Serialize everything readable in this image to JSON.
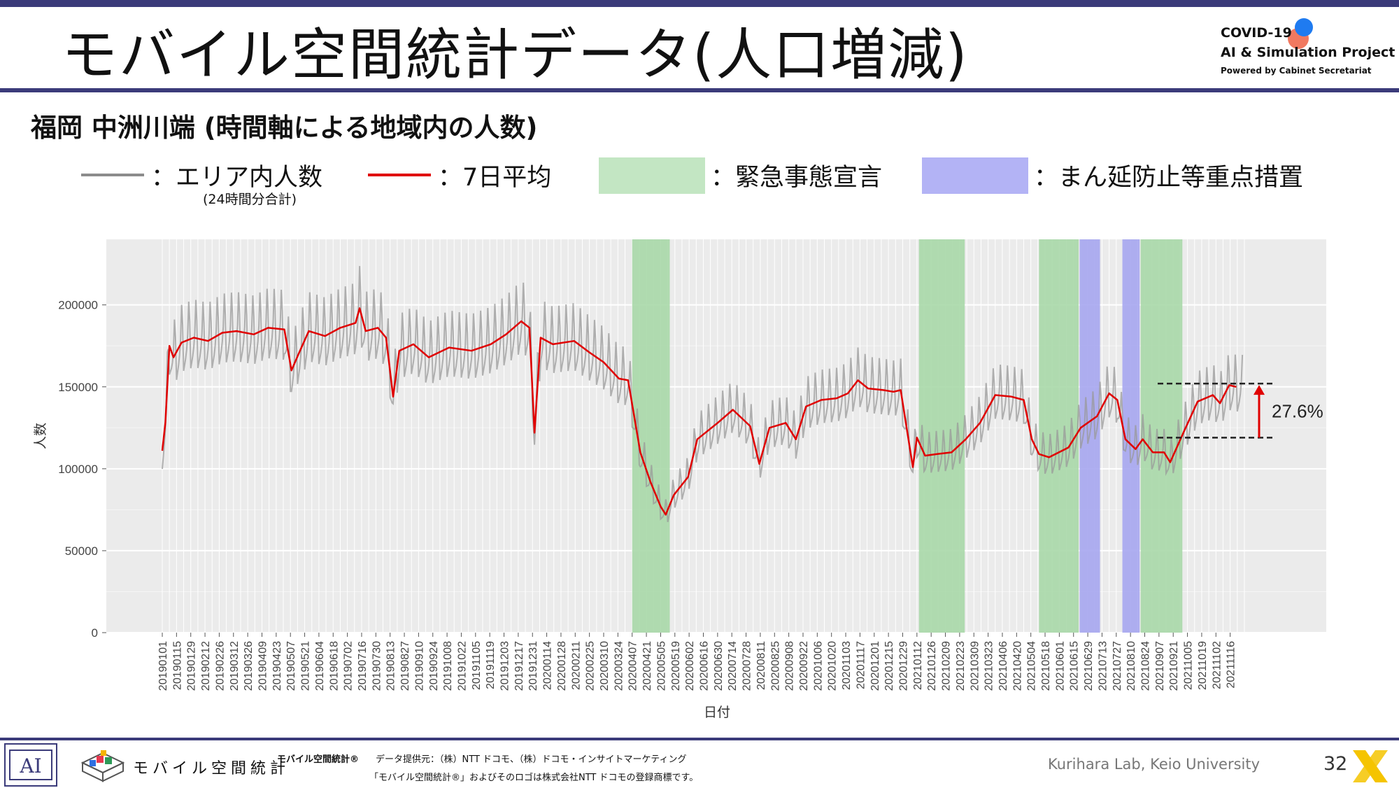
{
  "title": "モバイル空間統計データ(人口増減)",
  "logo": {
    "line1": "COVID-19",
    "line2": "AI & Simulation Project",
    "line3": "Powered by Cabinet Secretariat",
    "colors": {
      "blue": "#1f7bf0",
      "red": "#ef6a4f"
    }
  },
  "subtitle": "福岡 中洲川端 (時間軸による地域内の人数)",
  "legend": {
    "area_count": {
      "label": "：エリア内人数",
      "note": "(24時間分合計)",
      "color": "#888888"
    },
    "avg7": {
      "label": "：7日平均",
      "color": "#e00000"
    },
    "emergency": {
      "label": "：緊急事態宣言",
      "color": "#c3e6c3"
    },
    "priority": {
      "label": "：まん延防止等重点措置",
      "color": "#b3b3f5"
    }
  },
  "chart_data": {
    "type": "line",
    "xlabel": "日付",
    "ylabel": "人数",
    "ylim": [
      0,
      240000
    ],
    "yticks": [
      0,
      50000,
      100000,
      150000,
      200000
    ],
    "ytick_labels": [
      "0",
      "50000",
      "100000",
      "150000",
      "200000"
    ],
    "x_range": [
      "2019-01-01",
      "2021-11-30"
    ],
    "x_tick_labels": [
      "20190101",
      "20190115",
      "20190129",
      "20190212",
      "20190226",
      "20190312",
      "20190326",
      "20190409",
      "20190423",
      "20190507",
      "20190521",
      "20190604",
      "20190618",
      "20190702",
      "20190716",
      "20190730",
      "20190813",
      "20190827",
      "20190910",
      "20190924",
      "20191008",
      "20191022",
      "20191105",
      "20191119",
      "20191203",
      "20191217",
      "20191231",
      "20200114",
      "20200128",
      "20200211",
      "20200225",
      "20200310",
      "20200324",
      "20200407",
      "20200421",
      "20200505",
      "20200519",
      "20200602",
      "20200616",
      "20200630",
      "20200714",
      "20200728",
      "20200811",
      "20200825",
      "20200908",
      "20200922",
      "20201006",
      "20201020",
      "20201103",
      "20201117",
      "20201201",
      "20201215",
      "20201229",
      "20210112",
      "20210126",
      "20210209",
      "20210223",
      "20210309",
      "20210323",
      "20210406",
      "20210420",
      "20210504",
      "20210518",
      "20210601",
      "20210615",
      "20210629",
      "20210713",
      "20210727",
      "20210810",
      "20210824",
      "20210907",
      "20210921",
      "20211005",
      "20211019",
      "20211102",
      "20211116"
    ],
    "grid": true,
    "shaded_periods": [
      {
        "type": "緊急事態宣言",
        "start": "2020-04-07",
        "end": "2020-05-14",
        "color": "#a8d8a8"
      },
      {
        "type": "緊急事態宣言",
        "start": "2021-01-14",
        "end": "2021-02-28",
        "color": "#a8d8a8"
      },
      {
        "type": "緊急事態宣言",
        "start": "2021-05-12",
        "end": "2021-06-20",
        "color": "#a8d8a8"
      },
      {
        "type": "まん延防止等重点措置",
        "start": "2021-06-21",
        "end": "2021-07-11",
        "color": "#a6a6f0"
      },
      {
        "type": "まん延防止等重点措置",
        "start": "2021-08-02",
        "end": "2021-08-19",
        "color": "#a6a6f0"
      },
      {
        "type": "緊急事態宣言",
        "start": "2021-08-20",
        "end": "2021-09-30",
        "color": "#a8d8a8"
      }
    ],
    "series": [
      {
        "name": "エリア内人数",
        "color": "#a0a0a0",
        "weekly_pattern": "daily values oscillate weekly around the 7-day average, roughly ±20000"
      },
      {
        "name": "7日平均",
        "color": "#e00000",
        "points": [
          [
            "2019-01-01",
            111000
          ],
          [
            "2019-01-04",
            128000
          ],
          [
            "2019-01-08",
            175000
          ],
          [
            "2019-01-12",
            168000
          ],
          [
            "2019-01-20",
            177000
          ],
          [
            "2019-02-01",
            180000
          ],
          [
            "2019-02-15",
            178000
          ],
          [
            "2019-03-01",
            183000
          ],
          [
            "2019-03-15",
            184000
          ],
          [
            "2019-04-01",
            182000
          ],
          [
            "2019-04-15",
            186000
          ],
          [
            "2019-05-01",
            185000
          ],
          [
            "2019-05-08",
            160000
          ],
          [
            "2019-05-15",
            170000
          ],
          [
            "2019-05-25",
            184000
          ],
          [
            "2019-06-10",
            181000
          ],
          [
            "2019-06-25",
            186000
          ],
          [
            "2019-07-10",
            189000
          ],
          [
            "2019-07-14",
            198000
          ],
          [
            "2019-07-20",
            184000
          ],
          [
            "2019-08-01",
            186000
          ],
          [
            "2019-08-09",
            180000
          ],
          [
            "2019-08-16",
            144000
          ],
          [
            "2019-08-22",
            172000
          ],
          [
            "2019-09-05",
            176000
          ],
          [
            "2019-09-20",
            168000
          ],
          [
            "2019-10-10",
            174000
          ],
          [
            "2019-11-01",
            172000
          ],
          [
            "2019-11-20",
            176000
          ],
          [
            "2019-12-05",
            182000
          ],
          [
            "2019-12-20",
            190000
          ],
          [
            "2019-12-28",
            186000
          ],
          [
            "2020-01-02",
            122000
          ],
          [
            "2020-01-08",
            180000
          ],
          [
            "2020-01-20",
            176000
          ],
          [
            "2020-02-10",
            178000
          ],
          [
            "2020-02-25",
            171000
          ],
          [
            "2020-03-10",
            165000
          ],
          [
            "2020-03-25",
            155000
          ],
          [
            "2020-04-03",
            154000
          ],
          [
            "2020-04-15",
            110000
          ],
          [
            "2020-04-25",
            92000
          ],
          [
            "2020-05-05",
            77000
          ],
          [
            "2020-05-10",
            72000
          ],
          [
            "2020-05-18",
            84000
          ],
          [
            "2020-06-01",
            95000
          ],
          [
            "2020-06-10",
            118000
          ],
          [
            "2020-06-30",
            128000
          ],
          [
            "2020-07-15",
            136000
          ],
          [
            "2020-08-01",
            126000
          ],
          [
            "2020-08-10",
            103000
          ],
          [
            "2020-08-20",
            125000
          ],
          [
            "2020-09-05",
            128000
          ],
          [
            "2020-09-15",
            118000
          ],
          [
            "2020-09-25",
            138000
          ],
          [
            "2020-10-10",
            142000
          ],
          [
            "2020-10-25",
            143000
          ],
          [
            "2020-11-05",
            146000
          ],
          [
            "2020-11-15",
            154000
          ],
          [
            "2020-11-25",
            149000
          ],
          [
            "2020-12-10",
            148000
          ],
          [
            "2020-12-20",
            147000
          ],
          [
            "2020-12-27",
            148000
          ],
          [
            "2021-01-08",
            101000
          ],
          [
            "2021-01-12",
            119000
          ],
          [
            "2021-01-20",
            108000
          ],
          [
            "2021-02-01",
            109000
          ],
          [
            "2021-02-15",
            110000
          ],
          [
            "2021-03-01",
            118000
          ],
          [
            "2021-03-15",
            128000
          ],
          [
            "2021-03-30",
            145000
          ],
          [
            "2021-04-15",
            144000
          ],
          [
            "2021-04-27",
            142000
          ],
          [
            "2021-05-05",
            118000
          ],
          [
            "2021-05-12",
            109000
          ],
          [
            "2021-05-22",
            107000
          ],
          [
            "2021-06-10",
            113000
          ],
          [
            "2021-06-22",
            125000
          ],
          [
            "2021-07-08",
            132000
          ],
          [
            "2021-07-20",
            146000
          ],
          [
            "2021-07-28",
            142000
          ],
          [
            "2021-08-05",
            118000
          ],
          [
            "2021-08-15",
            112000
          ],
          [
            "2021-08-22",
            118000
          ],
          [
            "2021-09-01",
            110000
          ],
          [
            "2021-09-12",
            110000
          ],
          [
            "2021-09-18",
            104000
          ],
          [
            "2021-10-01",
            122000
          ],
          [
            "2021-10-15",
            141000
          ],
          [
            "2021-10-30",
            145000
          ],
          [
            "2021-11-06",
            140000
          ],
          [
            "2021-11-15",
            151000
          ],
          [
            "2021-11-22",
            150000
          ]
        ]
      }
    ],
    "annotation": {
      "text": "27.6%",
      "from_value": 119000,
      "to_value": 152000,
      "color": "#e00000"
    }
  },
  "footer": {
    "brand": "モバイル空間統計",
    "copy_brand": "モバイル空間統計®",
    "copy_provider": "データ提供元：（株）NTT ドコモ、（株）ドコモ・インサイトマーケティング",
    "copy_trademark": "「モバイル空間統計®」およびそのロゴは株式会社NTT ドコモの登録商標です。",
    "lab": "Kurihara Lab, Keio University",
    "page": "32",
    "icon_box_text": "AI"
  }
}
